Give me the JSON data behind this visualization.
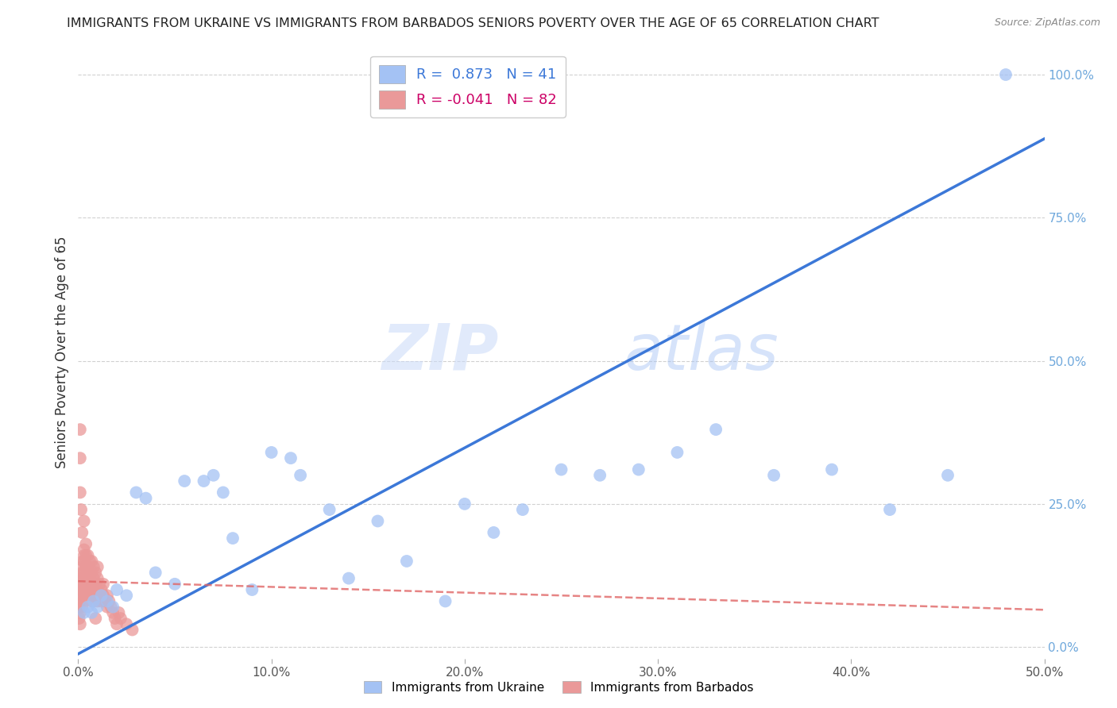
{
  "title": "IMMIGRANTS FROM UKRAINE VS IMMIGRANTS FROM BARBADOS SENIORS POVERTY OVER THE AGE OF 65 CORRELATION CHART",
  "source": "Source: ZipAtlas.com",
  "ylabel": "Seniors Poverty Over the Age of 65",
  "ukraine_R": 0.873,
  "ukraine_N": 41,
  "barbados_R": -0.041,
  "barbados_N": 82,
  "ukraine_color": "#a4c2f4",
  "barbados_color": "#ea9999",
  "ukraine_line_color": "#3c78d8",
  "barbados_line_color": "#e06666",
  "watermark_zip": "ZIP",
  "watermark_atlas": "atlas",
  "xlim": [
    0.0,
    0.5
  ],
  "ylim": [
    -0.02,
    1.05
  ],
  "ukraine_x": [
    0.003,
    0.005,
    0.007,
    0.008,
    0.01,
    0.012,
    0.015,
    0.018,
    0.02,
    0.025,
    0.03,
    0.035,
    0.04,
    0.05,
    0.055,
    0.065,
    0.07,
    0.075,
    0.08,
    0.09,
    0.1,
    0.11,
    0.115,
    0.13,
    0.14,
    0.155,
    0.17,
    0.19,
    0.2,
    0.215,
    0.23,
    0.25,
    0.27,
    0.29,
    0.31,
    0.33,
    0.36,
    0.39,
    0.42,
    0.45,
    0.48
  ],
  "ukraine_y": [
    0.06,
    0.07,
    0.06,
    0.08,
    0.07,
    0.09,
    0.08,
    0.07,
    0.1,
    0.09,
    0.27,
    0.26,
    0.13,
    0.11,
    0.29,
    0.29,
    0.3,
    0.27,
    0.19,
    0.1,
    0.34,
    0.33,
    0.3,
    0.24,
    0.12,
    0.22,
    0.15,
    0.08,
    0.25,
    0.2,
    0.24,
    0.31,
    0.3,
    0.31,
    0.34,
    0.38,
    0.3,
    0.31,
    0.24,
    0.3,
    1.0
  ],
  "barbados_x": [
    0.0005,
    0.0005,
    0.001,
    0.001,
    0.001,
    0.001,
    0.001,
    0.0015,
    0.0015,
    0.002,
    0.002,
    0.002,
    0.002,
    0.002,
    0.002,
    0.0025,
    0.0025,
    0.003,
    0.003,
    0.003,
    0.003,
    0.003,
    0.003,
    0.0035,
    0.004,
    0.004,
    0.004,
    0.004,
    0.004,
    0.005,
    0.005,
    0.005,
    0.005,
    0.006,
    0.006,
    0.006,
    0.006,
    0.007,
    0.007,
    0.007,
    0.007,
    0.008,
    0.008,
    0.008,
    0.008,
    0.009,
    0.009,
    0.009,
    0.01,
    0.01,
    0.01,
    0.01,
    0.011,
    0.011,
    0.012,
    0.012,
    0.013,
    0.013,
    0.014,
    0.015,
    0.015,
    0.016,
    0.017,
    0.018,
    0.019,
    0.02,
    0.021,
    0.022,
    0.025,
    0.028,
    0.001,
    0.001,
    0.001,
    0.0015,
    0.002,
    0.003,
    0.003,
    0.004,
    0.005,
    0.006,
    0.007,
    0.009
  ],
  "barbados_y": [
    0.05,
    0.07,
    0.04,
    0.06,
    0.08,
    0.1,
    0.12,
    0.09,
    0.11,
    0.07,
    0.09,
    0.1,
    0.11,
    0.13,
    0.14,
    0.12,
    0.15,
    0.08,
    0.1,
    0.12,
    0.13,
    0.15,
    0.16,
    0.11,
    0.09,
    0.11,
    0.12,
    0.14,
    0.16,
    0.1,
    0.12,
    0.14,
    0.16,
    0.1,
    0.12,
    0.13,
    0.15,
    0.09,
    0.11,
    0.13,
    0.15,
    0.08,
    0.1,
    0.12,
    0.14,
    0.09,
    0.11,
    0.13,
    0.08,
    0.1,
    0.12,
    0.14,
    0.09,
    0.11,
    0.08,
    0.1,
    0.09,
    0.11,
    0.08,
    0.07,
    0.09,
    0.08,
    0.07,
    0.06,
    0.05,
    0.04,
    0.06,
    0.05,
    0.04,
    0.03,
    0.38,
    0.33,
    0.27,
    0.24,
    0.2,
    0.17,
    0.22,
    0.18,
    0.14,
    0.1,
    0.08,
    0.05
  ],
  "ukraine_line_x": [
    0.0,
    0.5
  ],
  "ukraine_line_y": [
    -0.012,
    0.888
  ],
  "barbados_line_x": [
    0.0,
    0.5
  ],
  "barbados_line_y": [
    0.115,
    0.065
  ],
  "xticks": [
    0.0,
    0.1,
    0.2,
    0.3,
    0.4,
    0.5
  ],
  "xtick_labels": [
    "0.0%",
    "10.0%",
    "20.0%",
    "30.0%",
    "40.0%",
    "50.0%"
  ],
  "yticks_right": [
    0.0,
    0.25,
    0.5,
    0.75,
    1.0
  ],
  "ytick_labels_right": [
    "0.0%",
    "25.0%",
    "50.0%",
    "75.0%",
    "100.0%"
  ],
  "background_color": "#ffffff",
  "grid_color": "#cccccc"
}
